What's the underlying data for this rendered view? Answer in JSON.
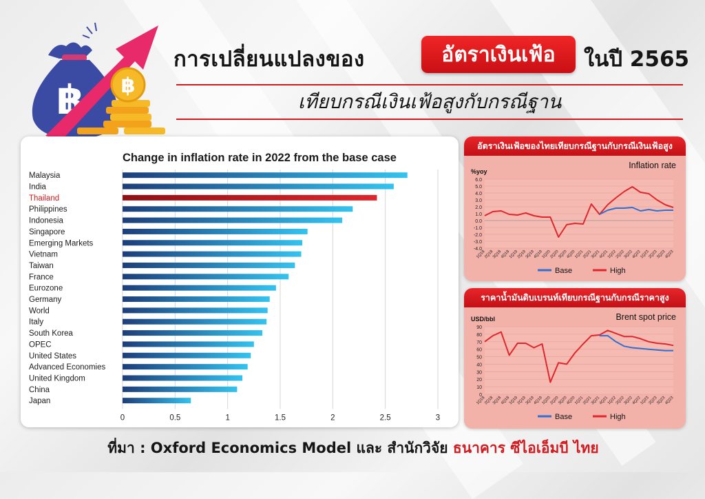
{
  "header": {
    "title_left": "การเปลี่ยนแปลงของ",
    "title_highlight": "อัตราเงินเฟ้อ",
    "title_right": "ในปี 2565",
    "subtitle": "เทียบกรณีเงินเฟ้อสูงกับกรณีฐาน",
    "currency_symbol": "฿"
  },
  "footer": {
    "prefix": "ที่มา : Oxford Economics Model และ สำนักวิจัย",
    "highlight": "ธนาคาร ซีไอเอ็มบี ไทย"
  },
  "colors": {
    "accent_red": "#d01b1f",
    "bar_dark": "#1d3e7a",
    "bar_light": "#33c3f0",
    "base_line": "#2f6fd1",
    "high_line": "#e0262a"
  },
  "chart_data": [
    {
      "type": "bar",
      "orientation": "horizontal",
      "title": "Change in inflation rate in 2022 from the base case",
      "categories": [
        "Malaysia",
        "India",
        "Thailand",
        "Philippines",
        "Indonesia",
        "Singapore",
        "Emerging Markets",
        "Vietnam",
        "Taiwan",
        "France",
        "Eurozone",
        "Germany",
        "World",
        "Italy",
        "South Korea",
        "OPEC",
        "United States",
        "Advanced Economies",
        "United Kingdom",
        "China",
        "Japan"
      ],
      "values": [
        2.71,
        2.58,
        2.42,
        2.19,
        2.09,
        1.76,
        1.71,
        1.7,
        1.64,
        1.58,
        1.46,
        1.4,
        1.38,
        1.37,
        1.33,
        1.25,
        1.22,
        1.19,
        1.14,
        1.09,
        0.65
      ],
      "highlight": "Thailand",
      "xlim": [
        0,
        3
      ],
      "xticks": [
        "0",
        "0.5",
        "1",
        "1.5",
        "2",
        "2.5",
        "3"
      ],
      "grid": true
    },
    {
      "type": "line",
      "panel_title": "อัตราเงินเฟ้อของไทยเทียบกรณีฐานกับกรณีเงินเฟ้อสูง",
      "title": "Inflation rate",
      "ylabel": "%yoy",
      "ylim": [
        -4,
        6
      ],
      "yticks": [
        "6.0",
        "5.0",
        "4.0",
        "3.0",
        "2.0",
        "1.0",
        "0.0",
        "-1.0",
        "-2.0",
        "-3.0",
        "-4.0"
      ],
      "x": [
        "1Q18",
        "2Q18",
        "3Q18",
        "4Q18",
        "1Q19",
        "2Q19",
        "3Q19",
        "4Q19",
        "1Q20",
        "2Q20",
        "3Q20",
        "4Q20",
        "1Q21",
        "2Q21",
        "3Q21",
        "4Q21",
        "1Q22",
        "2Q22",
        "3Q22",
        "4Q22",
        "1Q23",
        "2Q23",
        "3Q23",
        "4Q23"
      ],
      "series": [
        {
          "name": "Base",
          "values": [
            null,
            null,
            null,
            null,
            null,
            null,
            null,
            null,
            null,
            null,
            null,
            null,
            null,
            null,
            0.9,
            1.5,
            1.8,
            1.8,
            1.9,
            1.4,
            1.6,
            1.4,
            1.5,
            1.5
          ]
        },
        {
          "name": "High",
          "values": [
            0.7,
            1.3,
            1.4,
            0.9,
            0.8,
            1.1,
            0.7,
            0.5,
            0.5,
            -2.4,
            -0.6,
            -0.4,
            -0.5,
            2.4,
            0.9,
            2.3,
            3.3,
            4.2,
            4.9,
            4.1,
            3.9,
            3.0,
            2.3,
            1.9
          ]
        }
      ],
      "legend": "bottom"
    },
    {
      "type": "line",
      "panel_title": "ราคาน้ำมันดิบเบรนท์เทียบกรณีฐานกับกรณีราคาสูง",
      "title": "Brent spot price",
      "ylabel": "USD/bbl",
      "ylim": [
        0,
        90
      ],
      "yticks": [
        "90",
        "80",
        "70",
        "60",
        "50",
        "40",
        "30",
        "20",
        "10",
        "0"
      ],
      "x": [
        "1Q18",
        "2Q18",
        "3Q18",
        "4Q18",
        "1Q19",
        "2Q19",
        "3Q19",
        "4Q19",
        "1Q20",
        "2Q20",
        "3Q20",
        "4Q20",
        "1Q21",
        "2Q21",
        "3Q21",
        "4Q21",
        "1Q22",
        "2Q22",
        "3Q22",
        "4Q22",
        "1Q23",
        "2Q23",
        "3Q23",
        "4Q23"
      ],
      "series": [
        {
          "name": "Base",
          "values": [
            null,
            null,
            null,
            null,
            null,
            null,
            null,
            null,
            null,
            null,
            null,
            null,
            null,
            null,
            78,
            78,
            70,
            64,
            62,
            61,
            60,
            59,
            58,
            58
          ]
        },
        {
          "name": "High",
          "values": [
            70,
            78,
            83,
            52,
            68,
            68,
            62,
            67,
            16,
            42,
            40,
            55,
            67,
            78,
            79,
            85,
            81,
            77,
            77,
            74,
            70,
            68,
            67,
            65
          ]
        }
      ],
      "legend": "bottom"
    }
  ]
}
